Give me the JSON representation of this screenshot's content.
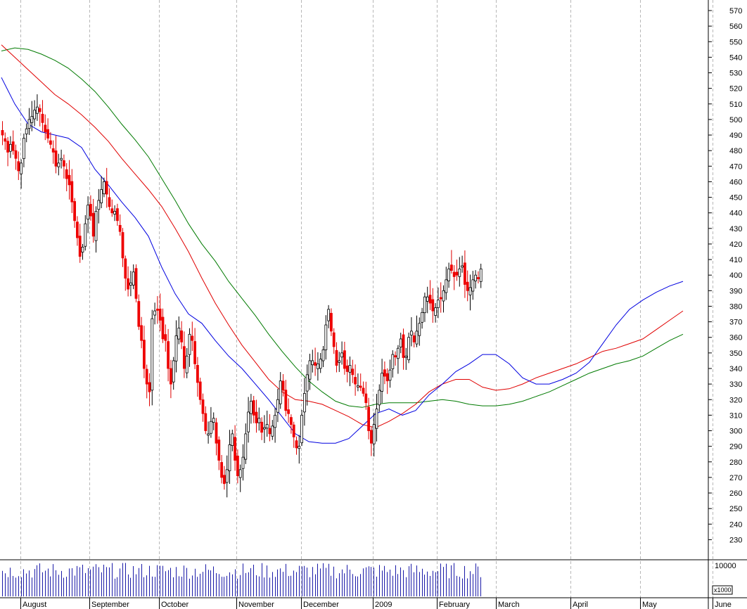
{
  "chart_data": {
    "type": "candlestick",
    "y_axis": {
      "side": "right",
      "range": [
        220,
        575
      ],
      "ticks": [
        570,
        560,
        550,
        540,
        530,
        520,
        510,
        500,
        490,
        480,
        470,
        460,
        450,
        440,
        430,
        420,
        410,
        400,
        390,
        380,
        370,
        360,
        350,
        340,
        330,
        320,
        310,
        300,
        290,
        280,
        270,
        260,
        250,
        240,
        230
      ]
    },
    "x_axis": {
      "labels": [
        "August",
        "September",
        "October",
        "November",
        "December",
        "2009",
        "February",
        "March",
        "April",
        "May",
        "June"
      ],
      "label_positions": [
        7,
        33,
        59,
        88,
        112,
        139,
        163,
        185,
        213,
        239,
        266
      ]
    },
    "grid": {
      "vertical": true,
      "style": "dashed"
    },
    "candles_close": [
      490,
      486,
      479,
      484,
      480,
      475,
      467,
      472,
      488,
      494,
      500,
      502,
      506,
      508,
      505,
      498,
      492,
      488,
      484,
      479,
      470,
      472,
      475,
      470,
      462,
      458,
      447,
      435,
      424,
      412,
      418,
      433,
      445,
      438,
      425,
      441,
      448,
      455,
      460,
      452,
      444,
      440,
      441,
      435,
      428,
      411,
      398,
      391,
      395,
      402,
      385,
      367,
      358,
      340,
      330,
      325,
      372,
      377,
      378,
      371,
      359,
      358,
      340,
      330,
      345,
      361,
      366,
      357,
      340,
      348,
      362,
      358,
      343,
      331,
      320,
      311,
      300,
      298,
      306,
      308,
      292,
      281,
      270,
      266,
      275,
      291,
      298,
      281,
      271,
      275,
      283,
      298,
      312,
      319,
      310,
      305,
      308,
      299,
      302,
      304,
      298,
      303,
      310,
      320,
      332,
      326,
      313,
      311,
      304,
      296,
      289,
      290,
      310,
      324,
      336,
      345,
      345,
      342,
      343,
      346,
      352,
      368,
      378,
      364,
      354,
      342,
      345,
      350,
      340,
      338,
      342,
      336,
      330,
      329,
      328,
      324,
      318,
      300,
      292,
      304,
      314,
      326,
      337,
      335,
      332,
      339,
      349,
      348,
      353,
      359,
      347,
      348,
      360,
      364,
      357,
      364,
      369,
      376,
      386,
      386,
      382,
      377,
      379,
      384,
      385,
      390,
      397,
      404,
      403,
      399,
      400,
      404,
      406,
      394,
      390,
      392,
      397,
      400,
      398,
      404
    ],
    "ma_blue": [
      [
        0,
        527
      ],
      [
        5,
        510
      ],
      [
        10,
        497
      ],
      [
        15,
        492
      ],
      [
        20,
        490
      ],
      [
        25,
        488
      ],
      [
        30,
        482
      ],
      [
        35,
        468
      ],
      [
        40,
        458
      ],
      [
        45,
        447
      ],
      [
        50,
        437
      ],
      [
        55,
        425
      ],
      [
        60,
        405
      ],
      [
        65,
        388
      ],
      [
        70,
        375
      ],
      [
        75,
        369
      ],
      [
        80,
        358
      ],
      [
        85,
        348
      ],
      [
        90,
        340
      ],
      [
        95,
        330
      ],
      [
        100,
        320
      ],
      [
        105,
        309
      ],
      [
        110,
        298
      ],
      [
        115,
        293
      ],
      [
        120,
        292
      ],
      [
        125,
        292
      ],
      [
        130,
        295
      ],
      [
        135,
        303
      ],
      [
        140,
        311
      ],
      [
        145,
        314
      ],
      [
        150,
        310
      ],
      [
        155,
        313
      ],
      [
        160,
        323
      ],
      [
        165,
        330
      ],
      [
        170,
        338
      ],
      [
        175,
        343
      ],
      [
        180,
        349
      ],
      [
        185,
        349
      ],
      [
        190,
        343
      ],
      [
        195,
        334
      ],
      [
        200,
        330
      ],
      [
        205,
        330
      ],
      [
        210,
        333
      ],
      [
        215,
        337
      ],
      [
        220,
        344
      ],
      [
        225,
        356
      ],
      [
        230,
        368
      ],
      [
        235,
        378
      ],
      [
        240,
        384
      ],
      [
        245,
        389
      ],
      [
        250,
        393
      ],
      [
        255,
        396
      ]
    ],
    "ma_red": [
      [
        0,
        548
      ],
      [
        5,
        540
      ],
      [
        10,
        532
      ],
      [
        15,
        524
      ],
      [
        20,
        516
      ],
      [
        25,
        510
      ],
      [
        30,
        503
      ],
      [
        35,
        495
      ],
      [
        40,
        486
      ],
      [
        45,
        475
      ],
      [
        50,
        465
      ],
      [
        55,
        455
      ],
      [
        60,
        444
      ],
      [
        65,
        430
      ],
      [
        70,
        415
      ],
      [
        75,
        398
      ],
      [
        80,
        382
      ],
      [
        85,
        368
      ],
      [
        90,
        355
      ],
      [
        95,
        344
      ],
      [
        100,
        333
      ],
      [
        105,
        325
      ],
      [
        110,
        320
      ],
      [
        115,
        319
      ],
      [
        120,
        317
      ],
      [
        125,
        313
      ],
      [
        130,
        309
      ],
      [
        135,
        304
      ],
      [
        140,
        302
      ],
      [
        145,
        306
      ],
      [
        150,
        311
      ],
      [
        155,
        317
      ],
      [
        160,
        325
      ],
      [
        165,
        330
      ],
      [
        170,
        333
      ],
      [
        175,
        333
      ],
      [
        180,
        328
      ],
      [
        185,
        326
      ],
      [
        190,
        327
      ],
      [
        195,
        330
      ],
      [
        200,
        334
      ],
      [
        205,
        337
      ],
      [
        210,
        340
      ],
      [
        215,
        343
      ],
      [
        220,
        347
      ],
      [
        225,
        351
      ],
      [
        230,
        353
      ],
      [
        235,
        356
      ],
      [
        240,
        359
      ],
      [
        245,
        365
      ],
      [
        250,
        371
      ],
      [
        255,
        377
      ]
    ],
    "ma_green": [
      [
        0,
        544
      ],
      [
        5,
        546
      ],
      [
        10,
        545
      ],
      [
        15,
        542
      ],
      [
        20,
        538
      ],
      [
        25,
        533
      ],
      [
        30,
        526
      ],
      [
        35,
        518
      ],
      [
        40,
        508
      ],
      [
        45,
        497
      ],
      [
        50,
        487
      ],
      [
        55,
        476
      ],
      [
        60,
        462
      ],
      [
        65,
        448
      ],
      [
        70,
        433
      ],
      [
        75,
        420
      ],
      [
        80,
        409
      ],
      [
        85,
        396
      ],
      [
        90,
        385
      ],
      [
        95,
        374
      ],
      [
        100,
        362
      ],
      [
        105,
        351
      ],
      [
        110,
        341
      ],
      [
        115,
        332
      ],
      [
        120,
        325
      ],
      [
        125,
        319
      ],
      [
        130,
        316
      ],
      [
        135,
        315
      ],
      [
        140,
        317
      ],
      [
        145,
        318
      ],
      [
        150,
        318
      ],
      [
        155,
        318
      ],
      [
        160,
        319
      ],
      [
        165,
        320
      ],
      [
        170,
        319
      ],
      [
        175,
        317
      ],
      [
        180,
        316
      ],
      [
        185,
        316
      ],
      [
        190,
        317
      ],
      [
        195,
        319
      ],
      [
        200,
        322
      ],
      [
        205,
        325
      ],
      [
        210,
        329
      ],
      [
        215,
        333
      ],
      [
        220,
        337
      ],
      [
        225,
        340
      ],
      [
        230,
        343
      ],
      [
        235,
        345
      ],
      [
        240,
        348
      ],
      [
        245,
        353
      ],
      [
        250,
        358
      ],
      [
        255,
        362
      ]
    ],
    "volume": {
      "ticks": [
        "10000"
      ],
      "multiplier": "x1000",
      "range": [
        0,
        12000
      ]
    }
  }
}
